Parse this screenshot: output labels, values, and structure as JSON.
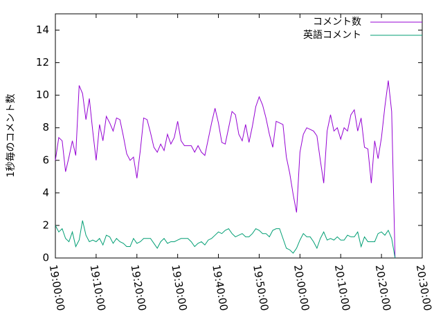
{
  "chart_data": {
    "type": "line",
    "ylabel": "1秒毎のコメント数",
    "x": [
      "19:00:00",
      "19:00:50",
      "19:01:40",
      "19:02:30",
      "19:03:20",
      "19:04:10",
      "19:05:00",
      "19:05:50",
      "19:06:40",
      "19:07:30",
      "19:08:20",
      "19:09:10",
      "19:10:00",
      "19:10:50",
      "19:11:40",
      "19:12:30",
      "19:13:20",
      "19:14:10",
      "19:15:00",
      "19:15:50",
      "19:16:40",
      "19:17:30",
      "19:18:20",
      "19:19:10",
      "19:20:00",
      "19:20:50",
      "19:21:40",
      "19:22:30",
      "19:23:20",
      "19:24:10",
      "19:25:00",
      "19:25:50",
      "19:26:40",
      "19:27:30",
      "19:28:20",
      "19:29:10",
      "19:30:00",
      "19:30:50",
      "19:31:40",
      "19:32:30",
      "19:33:20",
      "19:34:10",
      "19:35:00",
      "19:35:50",
      "19:36:40",
      "19:37:30",
      "19:38:20",
      "19:39:10",
      "19:40:00",
      "19:40:50",
      "19:41:40",
      "19:42:30",
      "19:43:20",
      "19:44:10",
      "19:45:00",
      "19:45:50",
      "19:46:40",
      "19:47:30",
      "19:48:20",
      "19:49:10",
      "19:50:00",
      "19:50:50",
      "19:51:40",
      "19:52:30",
      "19:53:20",
      "19:54:10",
      "19:55:00",
      "19:55:50",
      "19:56:40",
      "19:57:30",
      "19:58:20",
      "19:59:10",
      "20:00:00",
      "20:00:50",
      "20:01:40",
      "20:02:30",
      "20:03:20",
      "20:04:10",
      "20:05:00",
      "20:05:50",
      "20:06:40",
      "20:07:30",
      "20:08:20",
      "20:09:10",
      "20:10:00",
      "20:10:50",
      "20:11:40",
      "20:12:30",
      "20:13:20",
      "20:14:10",
      "20:15:00",
      "20:15:50",
      "20:16:40",
      "20:17:30",
      "20:18:20",
      "20:19:10",
      "20:20:00",
      "20:20:50",
      "20:21:40",
      "20:22:30",
      "20:23:20"
    ],
    "series": [
      {
        "name": "コメント数",
        "color": "#9400d3",
        "values": [
          6.0,
          7.4,
          7.2,
          5.3,
          6.2,
          7.2,
          6.3,
          10.6,
          10.1,
          8.5,
          9.8,
          7.8,
          6.0,
          8.2,
          7.2,
          8.7,
          8.3,
          7.8,
          8.6,
          8.5,
          7.5,
          6.4,
          6.0,
          6.2,
          4.9,
          6.6,
          8.6,
          8.5,
          7.7,
          6.8,
          6.5,
          7.0,
          6.6,
          7.6,
          7.0,
          7.4,
          8.4,
          7.2,
          6.9,
          6.9,
          6.9,
          6.5,
          6.9,
          6.5,
          6.3,
          7.3,
          8.3,
          9.2,
          8.3,
          7.1,
          7.0,
          8.0,
          9.0,
          8.8,
          7.6,
          7.2,
          8.2,
          7.1,
          8.1,
          9.3,
          9.9,
          9.4,
          8.6,
          7.6,
          6.8,
          8.4,
          8.3,
          8.2,
          6.2,
          5.2,
          3.9,
          2.8,
          6.5,
          7.6,
          8.0,
          7.9,
          7.8,
          7.5,
          6.0,
          4.6,
          7.8,
          8.8,
          7.8,
          8.0,
          7.3,
          8.0,
          7.8,
          8.8,
          9.1,
          7.8,
          8.6,
          6.8,
          6.7,
          4.6,
          7.2,
          6.1,
          7.4,
          9.3,
          10.9,
          9.0,
          0
        ]
      },
      {
        "name": "英語コメント",
        "color": "#009e73",
        "values": [
          2.0,
          1.6,
          1.8,
          1.2,
          1.0,
          1.6,
          0.7,
          1.1,
          2.3,
          1.4,
          1.0,
          1.1,
          1.0,
          1.2,
          0.8,
          1.4,
          1.3,
          0.9,
          1.2,
          1.0,
          0.9,
          0.7,
          0.7,
          1.2,
          0.9,
          1.0,
          1.2,
          1.2,
          1.2,
          0.9,
          0.6,
          1.0,
          1.2,
          0.9,
          1.0,
          1.0,
          1.1,
          1.2,
          1.2,
          1.2,
          1.0,
          0.7,
          0.9,
          1.0,
          0.8,
          1.1,
          1.2,
          1.4,
          1.6,
          1.5,
          1.7,
          1.8,
          1.5,
          1.3,
          1.4,
          1.5,
          1.3,
          1.3,
          1.5,
          1.8,
          1.7,
          1.5,
          1.5,
          1.3,
          1.7,
          1.8,
          1.8,
          1.2,
          0.6,
          0.5,
          0.3,
          0.6,
          1.1,
          1.5,
          1.3,
          1.3,
          1.0,
          0.6,
          1.2,
          1.6,
          1.1,
          1.2,
          1.1,
          1.3,
          1.1,
          1.1,
          1.4,
          1.3,
          1.3,
          1.6,
          0.7,
          1.3,
          1.0,
          1.0,
          1.0,
          1.5,
          1.6,
          1.4,
          1.7,
          1.2,
          0
        ]
      }
    ],
    "xlim": [
      "19:00:00",
      "20:30:00"
    ],
    "xticks": [
      "19:00:00",
      "19:10:00",
      "19:20:00",
      "19:30:00",
      "19:40:00",
      "19:50:00",
      "20:00:00",
      "20:10:00",
      "20:20:00",
      "20:30:00"
    ],
    "ylim": [
      0,
      15
    ],
    "yticks": [
      0,
      2,
      4,
      6,
      8,
      10,
      12,
      14
    ],
    "legend": "top-right"
  }
}
